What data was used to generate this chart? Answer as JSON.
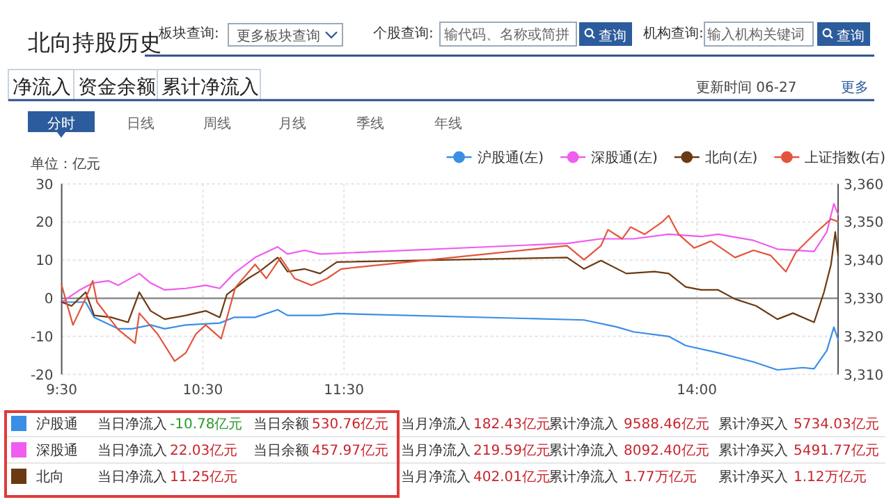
{
  "chart_data": {
    "type": "line",
    "title": "北向持股历史",
    "ylabel": "单位：亿元",
    "series": [
      {
        "name": "沪股通(左)",
        "color": "#3a8ee6",
        "x": [
          9.5,
          9.67,
          9.73,
          9.9,
          10,
          10.13,
          10.23,
          10.38,
          10.62,
          10.72,
          10.87,
          11.03,
          11.1,
          11.33,
          11.45,
          13.2,
          13.43,
          13.55,
          13.8,
          13.92,
          14.15,
          14.4,
          14.57,
          14.75,
          14.83,
          14.92,
          14.97,
          15
        ],
        "values": [
          -1,
          -1,
          -5,
          -8,
          -8,
          -7,
          -8,
          -7,
          -6.5,
          -5,
          -5,
          -3,
          -4.5,
          -4.5,
          -4,
          -5.7,
          -7.5,
          -8.8,
          -10,
          -12.4,
          -14.3,
          -16.7,
          -18.8,
          -18.2,
          -18.5,
          -13.7,
          -7.6,
          -10.8
        ]
      },
      {
        "name": "深股通(左)",
        "color": "#f05cf0",
        "x": [
          9.5,
          9.62,
          9.72,
          9.83,
          9.9,
          10.05,
          10.13,
          10.23,
          10.38,
          10.52,
          10.62,
          10.72,
          10.87,
          11.03,
          11.1,
          11.22,
          11.33,
          13.08,
          13.32,
          13.55,
          13.8,
          14.03,
          14.15,
          14.4,
          14.57,
          14.83,
          14.92,
          14.97,
          15
        ],
        "values": [
          -1,
          2,
          4,
          4.6,
          3.4,
          6.5,
          4,
          2.2,
          2.6,
          3.4,
          2.6,
          6.5,
          10.7,
          13.5,
          11.6,
          12.6,
          11.6,
          14.4,
          15.6,
          15.6,
          16.8,
          16.2,
          16.8,
          15.2,
          12.9,
          12.3,
          17.4,
          24.8,
          22
        ]
      },
      {
        "name": "北向(左)",
        "color": "#6b3a12",
        "x": [
          9.5,
          9.57,
          9.67,
          9.73,
          9.85,
          9.97,
          10.05,
          10.13,
          10.23,
          10.38,
          10.52,
          10.62,
          10.67,
          10.82,
          10.9,
          11.03,
          11.1,
          11.22,
          11.33,
          11.45,
          13.08,
          13.2,
          13.32,
          13.5,
          13.7,
          13.8,
          13.92,
          14.03,
          14.15,
          14.27,
          14.42,
          14.57,
          14.68,
          14.83,
          14.9,
          14.95,
          14.98,
          15
        ],
        "values": [
          -1,
          -2,
          1.6,
          -4.5,
          -5,
          -6.3,
          1.6,
          -3.3,
          -5.5,
          -4.5,
          -3.3,
          -5,
          1,
          5.2,
          7,
          10.7,
          7,
          7.7,
          6.5,
          9.5,
          10.7,
          7.7,
          9.9,
          6.5,
          7,
          6.5,
          3,
          2.2,
          2.2,
          -0.2,
          -2,
          -5.5,
          -3.9,
          -6.3,
          1.6,
          8.9,
          17.4,
          11.3
        ]
      },
      {
        "name": "上证指数(右)",
        "color": "#e2553c",
        "axis": "y2",
        "x": [
          9.5,
          9.58,
          9.67,
          9.72,
          9.75,
          9.9,
          10.02,
          10.05,
          10.18,
          10.3,
          10.38,
          10.45,
          10.52,
          10.63,
          10.73,
          10.87,
          10.95,
          11.05,
          11.15,
          11.27,
          11.38,
          11.48,
          13.08,
          13.2,
          13.32,
          13.37,
          13.47,
          13.53,
          13.63,
          13.75,
          13.8,
          13.87,
          13.98,
          14.1,
          14.27,
          14.4,
          14.52,
          14.63,
          14.7,
          14.83,
          14.95,
          15
        ],
        "values": [
          3333.4,
          3323,
          3330,
          3334.6,
          3329,
          3321.8,
          3318.2,
          3326.1,
          3320.6,
          3313.5,
          3315.7,
          3320.6,
          3323,
          3319.4,
          3332.8,
          3338.9,
          3335.2,
          3340.7,
          3335.2,
          3333.4,
          3335.2,
          3337.7,
          3343.8,
          3340.1,
          3343.8,
          3348,
          3345.6,
          3348.7,
          3346.8,
          3349.9,
          3351.7,
          3346.8,
          3343.2,
          3345,
          3340.7,
          3342.6,
          3341.3,
          3337,
          3342,
          3346.8,
          3350.8,
          3350.1
        ]
      }
    ],
    "xlim": [
      9.5,
      15
    ],
    "xticks": [
      {
        "value": 9.5,
        "label": "9:30"
      },
      {
        "value": 10.5,
        "label": "10:30"
      },
      {
        "value": 11.5,
        "label": "11:30"
      },
      {
        "value": 14,
        "label": "14:00"
      }
    ],
    "ylim": [
      -20,
      30
    ],
    "yticks": [
      -20,
      -10,
      0,
      10,
      20,
      30
    ],
    "y2lim": [
      3310,
      3360
    ],
    "y2ticks": [
      {
        "value": 3310,
        "label": "3,310"
      },
      {
        "value": 3320,
        "label": "3,320"
      },
      {
        "value": 3330,
        "label": "3,330"
      },
      {
        "value": 3340,
        "label": "3,340"
      },
      {
        "value": 3350,
        "label": "3,350"
      },
      {
        "value": 3360,
        "label": "3,360"
      }
    ],
    "grid": true,
    "legend": "top right",
    "ref_lines": [
      {
        "axis": "y",
        "value": 0,
        "color": "#8c8c8c"
      }
    ],
    "annotations": [
      "板块查询:",
      "更多板块查询",
      "个股查询:",
      "输代码、名称或简拼",
      "查询",
      "机构查询:",
      "输入机构关键词",
      "查询",
      "净流入",
      "资金余额",
      "累计净流入",
      "更新时间 06-27",
      "更多",
      "分时",
      "日线",
      "周线",
      "月线",
      "季线",
      "年线",
      "沪股通",
      "当日净流入",
      "-10.78亿元",
      "当日余额",
      "530.76亿元",
      "当月净流入",
      "182.43亿元",
      "累计净流入",
      "9588.46亿元",
      "累计净买入",
      "5734.03亿元",
      "深股通",
      "当日净流入",
      "22.03亿元",
      "当日余额",
      "457.97亿元",
      "当月净流入",
      "219.59亿元",
      "累计净流入",
      "8092.40亿元",
      "累计净买入",
      "5491.77亿元",
      "北向",
      "当日净流入",
      "11.25亿元",
      "当月净流入",
      "402.01亿元",
      "累计净流入",
      "1.77万亿元",
      "累计净买入",
      "1.12万亿元"
    ]
  }
}
